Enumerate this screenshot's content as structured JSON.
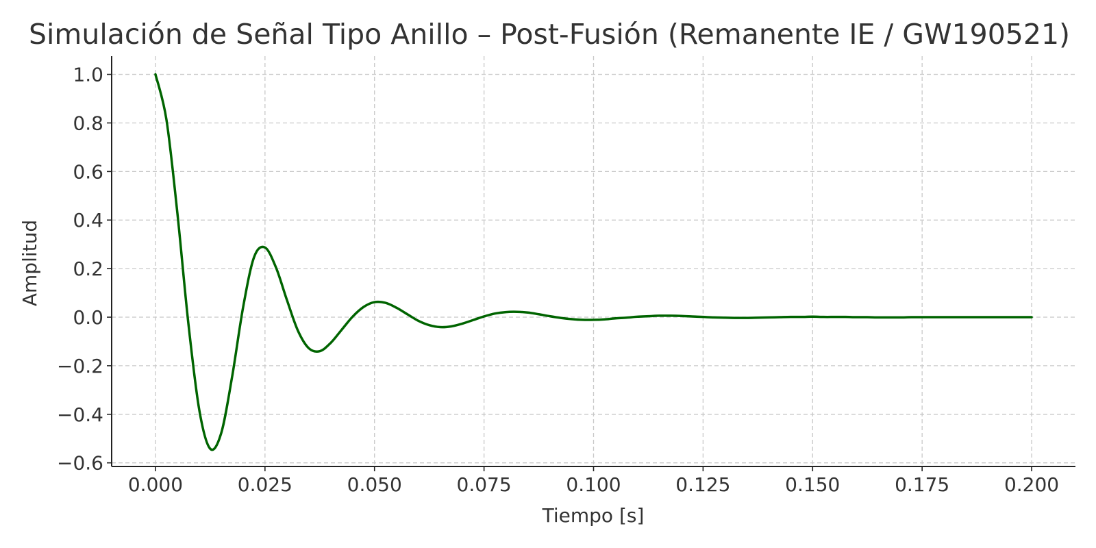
{
  "chart_data": {
    "type": "line",
    "title": "Simulación de Señal Tipo Anillo – Post-Fusión (Remanente IE / GW190521)",
    "xlabel": "Tiempo [s]",
    "ylabel": "Amplitud",
    "xlim": [
      -0.01,
      0.21
    ],
    "ylim": [
      -0.615,
      1.075
    ],
    "xticks": [
      0.0,
      0.025,
      0.05,
      0.075,
      0.1,
      0.125,
      0.15,
      0.175,
      0.2
    ],
    "xtick_labels": [
      "0.000",
      "0.025",
      "0.050",
      "0.075",
      "0.100",
      "0.125",
      "0.150",
      "0.175",
      "0.200"
    ],
    "yticks": [
      1.0,
      0.8,
      0.6,
      0.4,
      0.2,
      0.0,
      -0.2,
      -0.4,
      -0.6
    ],
    "ytick_labels": [
      "1.0",
      "0.8",
      "0.6",
      "0.4",
      "0.2",
      "0.0",
      "−0.2",
      "−0.4",
      "−0.6"
    ],
    "grid": true,
    "line_color": "#006400",
    "series": [
      {
        "x": [
          0.0,
          0.0025,
          0.005,
          0.0075,
          0.01,
          0.0125,
          0.015,
          0.0175,
          0.02,
          0.0225,
          0.025,
          0.0275,
          0.03,
          0.0325,
          0.035,
          0.0375,
          0.04,
          0.0425,
          0.045,
          0.0475,
          0.05,
          0.0525,
          0.055,
          0.0575,
          0.06,
          0.0625,
          0.065,
          0.0675,
          0.07,
          0.0725,
          0.075,
          0.0775,
          0.08,
          0.0825,
          0.085,
          0.0875,
          0.09,
          0.0925,
          0.095,
          0.0975,
          0.1,
          0.1025,
          0.105,
          0.1075,
          0.11,
          0.1125,
          0.115,
          0.1175,
          0.12,
          0.1225,
          0.125,
          0.1275,
          0.13,
          0.1325,
          0.135,
          0.1375,
          0.14,
          0.1425,
          0.145,
          0.1475,
          0.15,
          0.1525,
          0.155,
          0.1575,
          0.16,
          0.1625,
          0.165,
          0.1675,
          0.17,
          0.1725,
          0.175,
          0.1775,
          0.18,
          0.1825,
          0.185,
          0.1875,
          0.19,
          0.1925,
          0.195,
          0.1975,
          0.2
        ],
        "y": [
          1.0,
          0.814,
          0.429,
          -0.024,
          -0.382,
          -0.542,
          -0.478,
          -0.245,
          0.04,
          0.247,
          0.287,
          0.205,
          0.071,
          -0.055,
          -0.128,
          -0.14,
          -0.106,
          -0.052,
          0.002,
          0.042,
          0.062,
          0.059,
          0.039,
          0.012,
          -0.015,
          -0.033,
          -0.041,
          -0.038,
          -0.027,
          -0.012,
          0.003,
          0.015,
          0.021,
          0.022,
          0.019,
          0.012,
          0.004,
          -0.003,
          -0.008,
          -0.011,
          -0.011,
          -0.009,
          -0.005,
          -0.002,
          0.002,
          0.004,
          0.006,
          0.006,
          0.005,
          0.003,
          0.001,
          -0.001,
          -0.002,
          -0.003,
          -0.003,
          -0.002,
          -0.001,
          0.0,
          0.001,
          0.001,
          0.002,
          0.001,
          0.001,
          0.001,
          0.0,
          0.0,
          -0.001,
          -0.001,
          -0.001,
          0.0,
          0.0,
          0.0,
          0.0,
          0.0,
          0.0,
          0.0,
          0.0,
          0.0,
          0.0,
          0.0,
          0.0
        ]
      }
    ]
  }
}
